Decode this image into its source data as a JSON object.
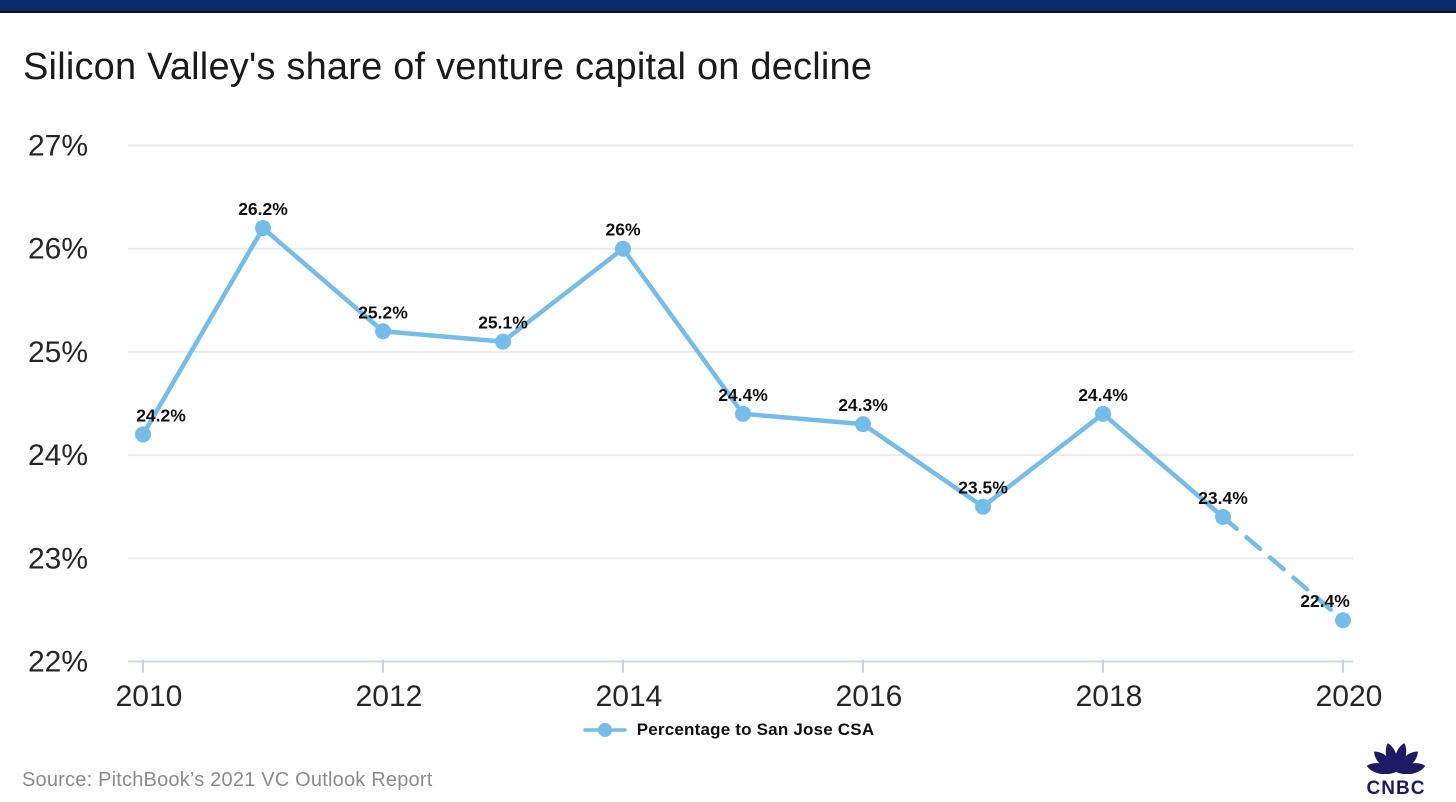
{
  "top_bar": {
    "color": "#0b2b69"
  },
  "title": "Silicon Valley's share of venture capital on decline",
  "chart_data": {
    "type": "line",
    "title": "Silicon Valley's share of venture capital on decline",
    "x": [
      2010,
      2011,
      2012,
      2013,
      2014,
      2015,
      2016,
      2017,
      2018,
      2019,
      2020
    ],
    "series": [
      {
        "name": "Percentage to San Jose CSA",
        "values": [
          24.2,
          26.2,
          25.2,
          25.1,
          26.0,
          24.4,
          24.3,
          23.5,
          24.4,
          23.4,
          22.4
        ],
        "point_labels": [
          "24.2%",
          "26.2%",
          "25.2%",
          "25.1%",
          "26%",
          "24.4%",
          "24.3%",
          "23.5%",
          "24.4%",
          "23.4%",
          "22.4%"
        ],
        "color": "#74bce9",
        "dashed_segment": {
          "from_x": 2019,
          "to_x": 2020
        }
      }
    ],
    "ylim": [
      22,
      27
    ],
    "yticks": [
      {
        "value": 27,
        "label": "27%"
      },
      {
        "value": 26,
        "label": "26%"
      },
      {
        "value": 25,
        "label": "25%"
      },
      {
        "value": 24,
        "label": "24%"
      },
      {
        "value": 23,
        "label": "23%"
      },
      {
        "value": 22,
        "label": "22%"
      }
    ],
    "xticks": [
      {
        "value": 2010,
        "label": "2010"
      },
      {
        "value": 2012,
        "label": "2012"
      },
      {
        "value": 2014,
        "label": "2014"
      },
      {
        "value": 2016,
        "label": "2016"
      },
      {
        "value": 2018,
        "label": "2018"
      },
      {
        "value": 2020,
        "label": "2020"
      }
    ],
    "grid": true,
    "legend_position": "bottom-center"
  },
  "legend": {
    "label": "Percentage to San Jose CSA",
    "marker_color": "#74bce9"
  },
  "source": "Source: PitchBook’s 2021 VC Outlook Report",
  "logo": {
    "text": "CNBC",
    "color": "#1e1b64"
  }
}
